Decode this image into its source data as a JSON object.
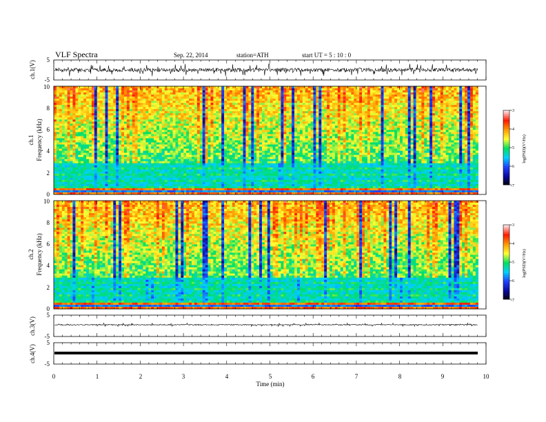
{
  "header": {
    "title": "VLF  Spectra",
    "date": "Sep. 22, 2014",
    "station": "station=ATH",
    "start": "start  UT  =   5  : 10 : 0"
  },
  "chart_data": [
    {
      "id": "ch1-waveform",
      "type": "line",
      "ylabel": "ch.1(V)",
      "ylim": [
        -5,
        5
      ],
      "yticks": [
        "5",
        "-5"
      ],
      "xlim": [
        0,
        10
      ],
      "x_data_end": 9.82,
      "trace": {
        "description_values": "noisy broadband waveform centered near 0 V with bursts to about +/-3 V",
        "center": 0,
        "amplitude": 3.2
      }
    },
    {
      "id": "ch1-spectrogram",
      "type": "heatmap",
      "ylabel": "ch.1\nFrequency  (kHz)",
      "ylim": [
        0,
        10
      ],
      "yticks": [
        "0",
        "2",
        "4",
        "6",
        "8",
        "10"
      ],
      "xlim": [
        0,
        10
      ],
      "x_data_end": 9.82,
      "colorbar": {
        "label": "log(PSD)(V²/Hz)",
        "range": [
          -7,
          -3
        ],
        "ticks": [
          "-3",
          "-4",
          "-5",
          "-6",
          "-7"
        ]
      }
    },
    {
      "id": "ch2-spectrogram",
      "type": "heatmap",
      "ylabel": "ch.2\nFrequency  (kHz)",
      "ylim": [
        0,
        10
      ],
      "yticks": [
        "0",
        "2",
        "4",
        "6",
        "8",
        "10"
      ],
      "xlim": [
        0,
        10
      ],
      "x_data_end": 9.82,
      "colorbar": {
        "label": "log(PSD)(V²/Hz)",
        "range": [
          -7,
          -3
        ],
        "ticks": [
          "-3",
          "-4",
          "-5",
          "-6",
          "-7"
        ]
      }
    },
    {
      "id": "ch3-waveform",
      "type": "line",
      "ylabel": "ch.3(V)",
      "ylim": [
        -5,
        5
      ],
      "yticks": [
        "5",
        "-5"
      ],
      "xlim": [
        0,
        10
      ],
      "x_data_end": 9.82,
      "trace": {
        "center": 0.5,
        "amplitude": 0.08
      }
    },
    {
      "id": "ch4-waveform",
      "type": "line",
      "ylabel": "ch.4(V)",
      "ylim": [
        -5,
        5
      ],
      "yticks": [
        "5",
        "-5"
      ],
      "xlim": [
        0,
        10
      ],
      "x_data_end": 9.82,
      "trace": {
        "center": 0,
        "amplitude": 0.05
      }
    }
  ],
  "xaxis": {
    "label": "Time  (min)",
    "range": [
      0,
      10
    ],
    "ticks": [
      "0",
      "1",
      "2",
      "3",
      "4",
      "5",
      "6",
      "7",
      "8",
      "9",
      "10"
    ]
  },
  "colors": {
    "colormap": [
      "#000000",
      "#0a0a9e",
      "#2040ff",
      "#00d0ff",
      "#00e060",
      "#ffff30",
      "#ff9a00",
      "#ff1a00",
      "#ffe0e0"
    ]
  }
}
